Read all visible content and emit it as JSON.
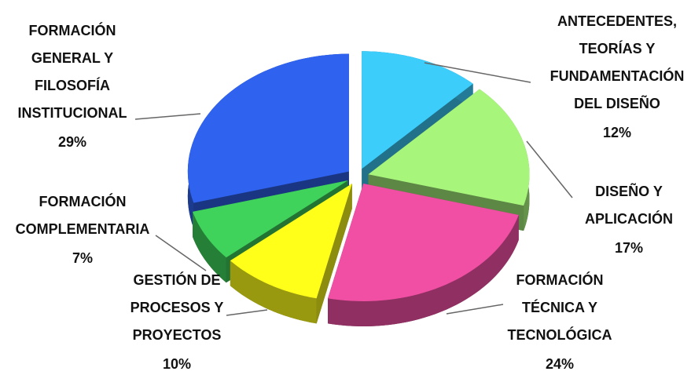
{
  "chart_data": {
    "type": "pie",
    "categories": [
      "ANTECEDENTES,\nTEORÍAS Y\nFUNDAMENTACIÓN\nDEL DISEÑO",
      "DISEÑO Y\nAPLICACIÓN",
      "FORMACIÓN\nTÉCNICA Y\nTECNOLÓGICA",
      "GESTIÓN DE\nPROCESOS Y\nPROYECTOS",
      "FORMACIÓN\nCOMPLEMENTARIA",
      "FORMACIÓN\nGENERAL Y\nFILOSOFÍA\nINSTITUCIONAL"
    ],
    "values": [
      12,
      17,
      24,
      10,
      7,
      29
    ],
    "value_labels": [
      "12%",
      "17%",
      "24%",
      "10%",
      "7%",
      "29%"
    ],
    "colors": [
      "#3ccdfb",
      "#a8f57c",
      "#f04fa3",
      "#ffff1a",
      "#3fd35c",
      "#2f62ee"
    ]
  }
}
